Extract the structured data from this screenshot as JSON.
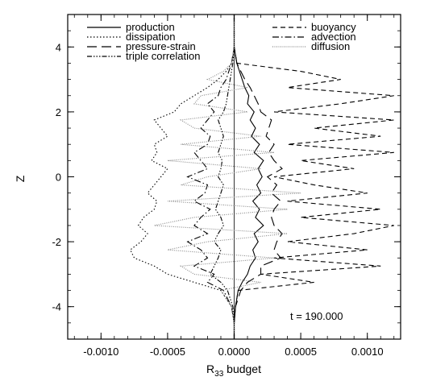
{
  "chart_data": {
    "type": "line",
    "xlabel_main": "R",
    "xlabel_sub": "33",
    "xlabel_rest": " budget",
    "ylabel": "Z",
    "xlim": [
      -0.00125,
      0.00125
    ],
    "ylim": [
      -5,
      5
    ],
    "xticks": [
      -0.001,
      -0.0005,
      0.0,
      0.0005,
      0.001
    ],
    "xtick_labels": [
      "-0.0010",
      "-0.0005",
      "0.0000",
      "0.0005",
      "0.0010"
    ],
    "yticks": [
      -4,
      -2,
      0,
      2,
      4
    ],
    "ytick_labels": [
      "-4",
      "-2",
      "0",
      "2",
      "4"
    ],
    "annotation": "t = 190.000",
    "grid": false,
    "legend_position": "top",
    "z": [
      -5.0,
      -4.5,
      -4.0,
      -3.5,
      -3.25,
      -3.0,
      -2.75,
      -2.5,
      -2.25,
      -2.0,
      -1.75,
      -1.5,
      -1.25,
      -1.0,
      -0.75,
      -0.5,
      -0.25,
      0.0,
      0.25,
      0.5,
      0.75,
      1.0,
      1.25,
      1.5,
      1.75,
      2.0,
      2.25,
      2.5,
      2.75,
      3.0,
      3.25,
      3.5,
      4.0,
      4.5,
      5.0
    ],
    "series": [
      {
        "name": "production",
        "dash": "",
        "color": "#000000",
        "values": [
          0.0,
          0.0,
          1e-05,
          3e-05,
          6e-05,
          0.0001,
          0.00012,
          0.00016,
          0.00014,
          0.00018,
          0.00015,
          0.00022,
          0.00016,
          0.00019,
          0.00014,
          0.0002,
          0.00017,
          0.00021,
          0.00018,
          0.00022,
          0.00015,
          0.00019,
          0.00013,
          0.00016,
          0.00012,
          0.00015,
          0.0001,
          0.00011,
          8e-05,
          6e-05,
          4e-05,
          2e-05,
          0.0,
          0.0,
          0.0
        ]
      },
      {
        "name": "dissipation",
        "dash": "1.5 2.5",
        "color": "#000000",
        "values": [
          0.0,
          0.0,
          -2e-05,
          -0.0001,
          -0.0003,
          -0.0005,
          -0.0006,
          -0.00075,
          -0.00078,
          -0.0007,
          -0.00065,
          -0.00072,
          -0.00068,
          -0.0006,
          -0.00058,
          -0.00065,
          -0.0006,
          -0.00055,
          -0.0005,
          -0.00062,
          -0.00058,
          -0.0006,
          -0.0005,
          -0.00055,
          -0.0006,
          -0.00045,
          -0.0004,
          -0.0003,
          -0.0002,
          -0.00012,
          -6e-05,
          -2e-05,
          0.0,
          0.0,
          0.0
        ]
      },
      {
        "name": "pressure-strain",
        "dash": "12 6",
        "color": "#000000",
        "values": [
          0.0,
          0.0,
          1e-05,
          5e-05,
          0.0001,
          0.0002,
          0.0002,
          0.00035,
          0.0003,
          0.00032,
          0.00036,
          0.0003,
          0.00028,
          0.0003,
          0.00035,
          0.00028,
          0.00032,
          0.00025,
          0.00036,
          0.0003,
          0.00026,
          0.0003,
          0.00024,
          0.00026,
          0.00028,
          0.0002,
          0.00018,
          0.00015,
          0.00012,
          8e-05,
          5e-05,
          2e-05,
          0.0,
          0.0,
          0.0
        ]
      },
      {
        "name": "triple correlation",
        "dash": "6 2 1.5 2 1.5 2 1.5 2",
        "color": "#000000",
        "values": [
          0.0,
          0.0,
          -1e-05,
          -5e-05,
          -0.0001,
          -0.00018,
          -0.00015,
          -0.00012,
          -0.0001,
          -0.00015,
          -0.00012,
          -8e-05,
          -0.0001,
          -0.00014,
          -0.00012,
          -0.0001,
          -8e-05,
          -0.00012,
          -0.0001,
          -9e-05,
          -0.00012,
          -0.0001,
          -8e-05,
          -0.0001,
          -0.00012,
          -8e-05,
          -6e-05,
          -5e-05,
          -4e-05,
          -3e-05,
          -2e-05,
          -1e-05,
          0.0,
          0.0,
          0.0
        ]
      },
      {
        "name": "buoyancy",
        "dash": "6 4",
        "color": "#000000",
        "values": [
          0.0,
          0.0,
          1e-05,
          3e-05,
          0.0006,
          0.0002,
          0.0011,
          0.0003,
          0.001,
          0.0004,
          0.0009,
          0.0012,
          0.0005,
          0.0011,
          0.0004,
          0.001,
          0.0006,
          0.0003,
          0.0009,
          0.0005,
          0.0012,
          0.0004,
          0.0011,
          0.0006,
          0.0012,
          0.0003,
          0.0008,
          0.0012,
          0.0004,
          0.0008,
          0.0005,
          2e-05,
          0.0,
          0.0,
          0.0
        ]
      },
      {
        "name": "advection",
        "dash": "8 3 1.5 3",
        "color": "#000000",
        "values": [
          0.0,
          0.0,
          -2e-05,
          -8e-05,
          -0.0002,
          -0.00015,
          -0.0003,
          -0.0002,
          -0.00025,
          -0.00035,
          -0.0002,
          -0.0003,
          -0.00025,
          -0.00018,
          -0.0003,
          -0.00022,
          -0.0002,
          -0.00035,
          -0.0002,
          -0.00025,
          -0.0003,
          -0.0002,
          -0.00018,
          -0.00025,
          -0.0002,
          -0.00015,
          -0.0002,
          -0.00012,
          -0.0001,
          -6e-05,
          -4e-05,
          -2e-05,
          0.0,
          0.0,
          0.0
        ]
      },
      {
        "name": "diffusion",
        "dash": "1 1.5",
        "color": "#888888",
        "values": [
          0.0,
          0.0,
          -2e-05,
          -0.0001,
          0.0002,
          -0.0003,
          -0.0004,
          0.0003,
          -0.0005,
          -0.0002,
          0.0004,
          -0.0006,
          -0.0003,
          0.0004,
          -0.0005,
          0.0005,
          -0.0004,
          -0.0002,
          0.0002,
          -0.0005,
          0.0003,
          -0.0004,
          0.0002,
          -0.0003,
          -0.0004,
          0.0001,
          -0.0003,
          -0.00025,
          0.0001,
          -0.0002,
          -8e-05,
          -2e-05,
          0.0,
          0.0,
          0.0
        ]
      }
    ]
  }
}
